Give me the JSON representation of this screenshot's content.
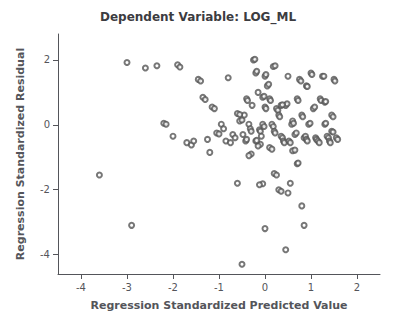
{
  "chart_data": {
    "type": "scatter",
    "title": "Dependent Variable: LOG_ML",
    "xlabel": "Regression Standardized Predicted Value",
    "ylabel": "Regression Standardized Residual",
    "xlim": [
      -4.5,
      2.5
    ],
    "ylim": [
      -4.6,
      2.8
    ],
    "xticks": [
      -4,
      -3,
      -2,
      -1,
      0,
      1,
      2
    ],
    "yticks": [
      -4,
      -2,
      0,
      2
    ],
    "grid": false,
    "color": "#555555",
    "marker": "open_circle",
    "x": [
      -3.6,
      -3.0,
      -2.9,
      -2.6,
      -2.35,
      -2.2,
      -2.15,
      -2.0,
      -1.9,
      -1.85,
      -1.7,
      -1.6,
      -1.55,
      -1.45,
      -1.4,
      -1.35,
      -1.3,
      -1.25,
      -1.2,
      -1.15,
      -1.1,
      -1.05,
      -1.0,
      -0.95,
      -0.9,
      -0.85,
      -0.8,
      -0.75,
      -0.7,
      -0.65,
      -0.6,
      -0.55,
      -0.5,
      -0.48,
      -0.45,
      -0.42,
      -0.4,
      -0.35,
      -0.32,
      -0.3,
      -0.28,
      -0.25,
      -0.22,
      -0.2,
      -0.18,
      -0.15,
      -0.12,
      -0.1,
      -0.08,
      -0.05,
      -0.02,
      0.0,
      0.02,
      0.05,
      0.08,
      0.1,
      0.12,
      0.15,
      0.18,
      0.2,
      0.22,
      0.25,
      0.28,
      0.3,
      0.32,
      0.35,
      0.38,
      0.4,
      0.42,
      0.45,
      0.48,
      0.5,
      0.52,
      0.55,
      0.58,
      0.6,
      0.62,
      0.65,
      0.68,
      0.7,
      0.72,
      0.75,
      0.78,
      0.8,
      0.82,
      0.85,
      0.88,
      0.9,
      0.92,
      0.95,
      0.98,
      1.0,
      1.02,
      1.05,
      1.08,
      1.1,
      1.12,
      1.15,
      1.18,
      1.2,
      1.22,
      1.25,
      1.28,
      1.3,
      1.32,
      1.35,
      1.38,
      1.4,
      1.42,
      1.45,
      1.48,
      1.5,
      1.52,
      1.55,
      1.58,
      0.45,
      0.0,
      -0.5,
      0.0,
      0.02,
      -0.1,
      -0.15,
      0.1,
      0.15,
      0.2,
      0.25,
      -0.05,
      -0.12,
      0.5,
      0.55,
      -0.3,
      -0.35,
      0.8,
      0.85,
      0.3,
      0.35,
      -0.6,
      -0.55,
      -0.4,
      -0.38,
      0.18,
      0.22,
      0.6,
      0.65,
      0.9,
      0.92,
      1.3,
      1.32,
      1.45,
      1.48,
      -0.2,
      -0.18,
      0.35,
      0.38,
      0.7,
      0.72,
      -0.05,
      -0.02
    ],
    "values": [
      -1.55,
      1.92,
      -3.1,
      1.75,
      1.82,
      0.05,
      0.02,
      -0.35,
      1.85,
      1.78,
      -0.55,
      -0.62,
      -0.5,
      1.4,
      1.35,
      0.85,
      0.78,
      -0.45,
      -0.85,
      0.55,
      0.5,
      -0.25,
      -0.28,
      0.02,
      -0.12,
      -0.5,
      1.45,
      -0.55,
      -0.3,
      -0.4,
      -1.8,
      0.12,
      0.15,
      -0.3,
      0.3,
      -0.5,
      -0.45,
      0.02,
      -0.12,
      -0.2,
      0.6,
      2.0,
      2.02,
      1.6,
      1.65,
      1.0,
      -0.15,
      -0.2,
      -0.35,
      0.02,
      -0.05,
      1.5,
      1.55,
      1.2,
      1.25,
      0.8,
      0.75,
      0.02,
      -0.05,
      -0.2,
      -0.25,
      0.5,
      0.45,
      0.3,
      0.25,
      -0.35,
      -0.4,
      -0.5,
      -0.55,
      0.6,
      0.65,
      1.5,
      -0.5,
      -0.55,
      0.02,
      0.12,
      0.05,
      -0.3,
      -0.25,
      0.8,
      0.75,
      1.4,
      1.35,
      0.3,
      0.25,
      -0.4,
      -0.35,
      -0.45,
      -0.5,
      0.02,
      0.05,
      1.6,
      1.55,
      0.5,
      0.55,
      -0.4,
      -0.45,
      -0.5,
      -0.55,
      0.8,
      0.75,
      1.5,
      1.5,
      0.02,
      0.05,
      -0.35,
      -0.4,
      -0.5,
      -0.55,
      0.3,
      0.25,
      1.4,
      1.35,
      -0.4,
      -0.45,
      -3.85,
      -3.2,
      -4.3,
      0.55,
      0.5,
      -0.6,
      -0.65,
      -0.7,
      -0.75,
      -1.5,
      -1.55,
      -1.82,
      -1.85,
      -2.1,
      -1.8,
      -0.9,
      -0.95,
      -2.5,
      -3.1,
      -2.0,
      -2.05,
      0.35,
      0.32,
      0.8,
      0.75,
      1.8,
      1.82,
      -0.8,
      -0.78,
      1.2,
      1.18,
      0.7,
      0.72,
      -0.2,
      -0.22,
      -0.5,
      -0.48,
      0.6,
      0.62,
      -1.2,
      -1.18,
      0.85,
      0.88
    ]
  }
}
